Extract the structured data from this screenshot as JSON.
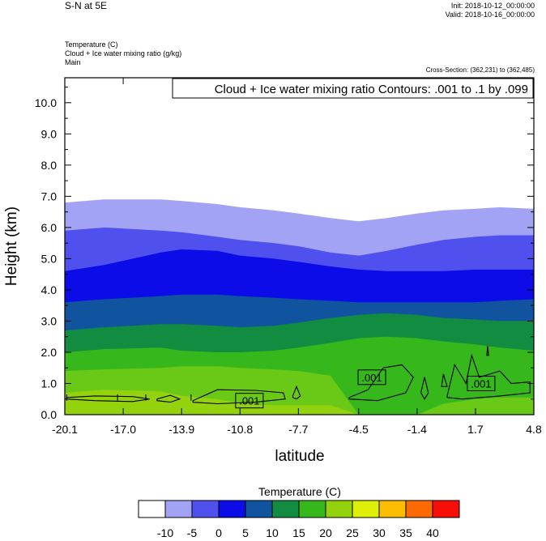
{
  "header": {
    "title": "S-N at 5E",
    "init": "Init: 2018-10-12_00:00:00",
    "valid": "Valid: 2018-10-16_00:00:00",
    "field1": "Temperature   (C)",
    "field2": "Cloud + Ice water mixing ratio   (g/kg)",
    "field3": "Main",
    "cross_section": "Cross-Section: (362,231) to (362,485)"
  },
  "chart_data": {
    "type": "area",
    "title": "Cloud + Ice water mixing ratio Contours: .001 to .1 by .099",
    "xlabel": "latitude",
    "ylabel": "Height (km)",
    "xlim": [
      -20.1,
      4.8
    ],
    "ylim": [
      0.0,
      10.8
    ],
    "x_ticks": [
      "-20.1",
      "-17.0",
      "-13.9",
      "-10.8",
      "-7.7",
      "-4.5",
      "-1.4",
      "1.7",
      "4.8"
    ],
    "y_ticks": [
      "0.0",
      "1.0",
      "2.0",
      "3.0",
      "4.0",
      "5.0",
      "6.0",
      "7.0",
      "8.0",
      "9.0",
      "10.0"
    ],
    "temperature_bands": {
      "x": [
        -20.1,
        -18.0,
        -15.0,
        -13.9,
        -12.0,
        -10.8,
        -9.0,
        -7.7,
        -6.0,
        -4.5,
        -3.0,
        -1.4,
        0.0,
        1.7,
        3.0,
        4.8
      ],
      "isotherms": [
        {
          "level": -10,
          "heights": [
            6.8,
            6.9,
            6.9,
            6.85,
            6.75,
            6.65,
            6.55,
            6.45,
            6.3,
            6.2,
            6.3,
            6.45,
            6.55,
            6.6,
            6.65,
            6.6
          ]
        },
        {
          "level": -5,
          "heights": [
            5.9,
            6.0,
            5.9,
            5.85,
            5.7,
            5.6,
            5.5,
            5.4,
            5.2,
            5.1,
            5.25,
            5.45,
            5.6,
            5.7,
            5.75,
            5.75
          ]
        },
        {
          "level": 0,
          "heights": [
            4.6,
            4.8,
            5.2,
            5.3,
            5.25,
            5.1,
            5.0,
            4.9,
            4.75,
            4.65,
            4.6,
            4.6,
            4.6,
            4.65,
            4.65,
            4.65
          ]
        },
        {
          "level": 5,
          "heights": [
            3.6,
            3.7,
            3.8,
            3.85,
            3.85,
            3.8,
            3.75,
            3.7,
            3.65,
            3.6,
            3.6,
            3.6,
            3.6,
            3.6,
            3.65,
            3.7
          ]
        },
        {
          "level": 10,
          "heights": [
            2.7,
            2.8,
            2.9,
            2.9,
            2.85,
            2.8,
            2.85,
            2.95,
            3.1,
            3.2,
            3.25,
            3.2,
            3.1,
            3.05,
            3.0,
            3.0
          ]
        },
        {
          "level": 15,
          "heights": [
            2.0,
            2.1,
            2.15,
            2.05,
            2.0,
            2.0,
            2.05,
            2.15,
            2.3,
            2.45,
            2.5,
            2.45,
            2.35,
            2.25,
            2.15,
            2.05
          ]
        },
        {
          "level": 20,
          "heights": [
            1.4,
            1.45,
            1.5,
            1.55,
            1.55,
            1.5,
            1.45,
            1.4,
            1.25,
            0.0,
            0.0,
            0.0,
            0.35,
            0.5,
            0.55,
            0.55
          ]
        },
        {
          "level": 25,
          "heights": [
            0.7,
            0.8,
            0.75,
            0.6,
            0.5,
            0.35,
            0.3,
            0.3,
            0.3,
            0.0,
            0.0,
            0.0,
            0.0,
            0.0,
            0.0,
            0.0
          ]
        }
      ]
    },
    "contour_labels": [
      {
        "text": ".001",
        "x": -10.3,
        "y": 0.45
      },
      {
        "text": ".001",
        "x": -3.8,
        "y": 1.2
      },
      {
        "text": ".001",
        "x": 2.0,
        "y": 1.0
      }
    ]
  },
  "legend": {
    "title": "Temperature  (C)",
    "labels": [
      "-10",
      "-5",
      "0",
      "5",
      "10",
      "15",
      "20",
      "25",
      "30",
      "35",
      "40"
    ],
    "colors": [
      "#ffffff",
      "#a3a3f6",
      "#5050ef",
      "#0c0ce8",
      "#10539f",
      "#128c41",
      "#36b81c",
      "#94d20e",
      "#dfef08",
      "#fdbd01",
      "#fb6a03",
      "#f70e08"
    ]
  },
  "band_colors": {
    "-10": "#ffffff",
    "-5": "#a3a3f6",
    "0": "#5050ef",
    "5": "#0c0ce8",
    "10": "#10539f",
    "15": "#128c41",
    "20": "#36b81c",
    "25": "#6ac816",
    "30": "#94d20e"
  }
}
